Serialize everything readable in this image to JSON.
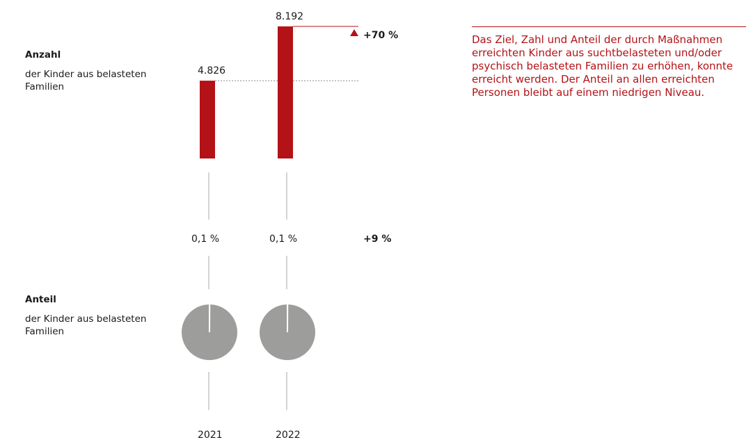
{
  "chart_data": [
    {
      "type": "bar",
      "title": "Anzahl",
      "subtitle": "der Kinder aus belasteten Familien",
      "categories": [
        "2021",
        "2022"
      ],
      "values": [
        4826,
        8192
      ],
      "value_labels": [
        "4.826",
        "8.192"
      ],
      "color": "#b31217",
      "change_label": "+70 %"
    },
    {
      "type": "pie",
      "title": "Anteil",
      "subtitle": "der Kinder aus belasteten Familien",
      "values": [
        0.1,
        0.1
      ],
      "value_labels": [
        "0,1 %",
        "0,1 %"
      ],
      "color": "#9d9d9c",
      "change_label": "+9 %"
    }
  ],
  "note": "Das Ziel, Zahl und Anteil der durch Maßnahmen erreichten Kinder aus suchtbelasteten und/oder psychisch belasteten Familien zu erhöhen, konnte erreicht werden. Der Anteil an allen erreichten Personen bleibt auf einem niedrigen Niveau."
}
